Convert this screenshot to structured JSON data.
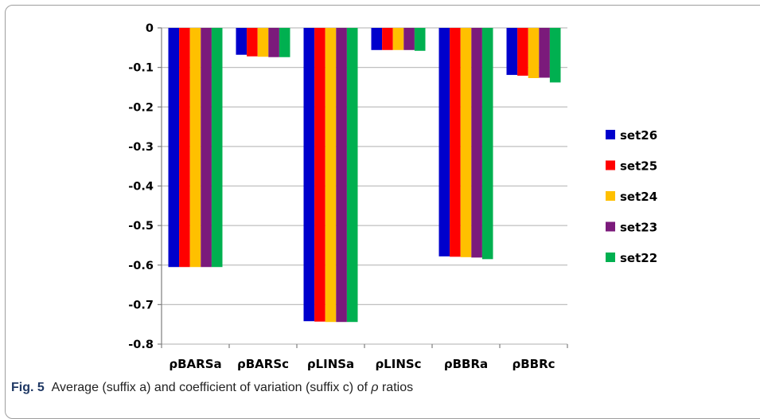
{
  "caption": {
    "label": "Fig. 5",
    "text_before": "Average (suffix a) and coefficient of variation (suffix c) of ",
    "symbol": "ρ",
    "text_after": " ratios"
  },
  "colors": {
    "set26": "#0000cc",
    "set25": "#ff0000",
    "set24": "#ffc000",
    "set23": "#7b1a7b",
    "set22": "#00b050",
    "grid": "#bfbfbf",
    "axis": "#7f7f7f"
  },
  "chart_data": {
    "type": "bar",
    "title": "",
    "xlabel": "",
    "ylabel": "",
    "ylim": [
      -0.8,
      0
    ],
    "yticks": [
      0,
      -0.1,
      -0.2,
      -0.3,
      -0.4,
      -0.5,
      -0.6,
      -0.7,
      -0.8
    ],
    "ytick_labels": [
      "0",
      "-0.1",
      "-0.2",
      "-0.3",
      "-0.4",
      "-0.5",
      "-0.6",
      "-0.7",
      "-0.8"
    ],
    "grid": true,
    "legend_position": "right",
    "categories": [
      "ρBARSa",
      "ρBARSc",
      "ρLINSa",
      "ρLINSc",
      "ρBBRa",
      "ρBBRc"
    ],
    "series": [
      {
        "name": "set26",
        "values": [
          -0.605,
          -0.068,
          -0.742,
          -0.056,
          -0.578,
          -0.119
        ]
      },
      {
        "name": "set25",
        "values": [
          -0.605,
          -0.072,
          -0.743,
          -0.056,
          -0.579,
          -0.121
        ]
      },
      {
        "name": "set24",
        "values": [
          -0.605,
          -0.073,
          -0.744,
          -0.056,
          -0.58,
          -0.127
        ]
      },
      {
        "name": "set23",
        "values": [
          -0.605,
          -0.074,
          -0.744,
          -0.056,
          -0.581,
          -0.126
        ]
      },
      {
        "name": "set22",
        "values": [
          -0.605,
          -0.074,
          -0.744,
          -0.058,
          -0.585,
          -0.138
        ]
      }
    ]
  }
}
